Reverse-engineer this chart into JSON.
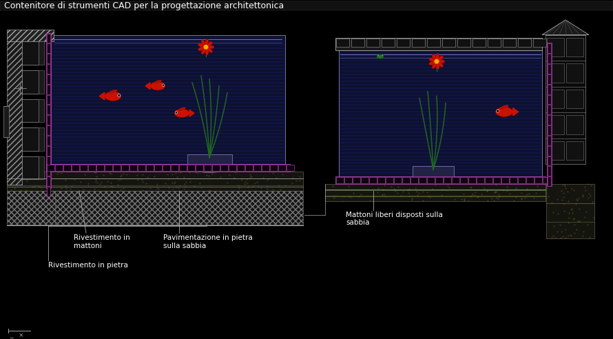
{
  "bg_color": "#000000",
  "title": "Contenitore di strumenti CAD per la progettazione architettonica",
  "title_color": "#ffffff",
  "title_fontsize": 9.0,
  "water_color": "#0a0a2e",
  "pink_color": "#cc44cc",
  "white_color": "#ffffff",
  "red_color": "#cc1100",
  "green_color": "#226622",
  "label1": "Rivestimento in\nmattoni",
  "label2": "Pavimentazione in pietra\nsulla sabbia",
  "label3": "Rivestimento in pietra",
  "label4": "Mattoni liberi disposti sulla\nsabbia",
  "label_color": "#ffffff",
  "label_fontsize": 7.5,
  "figw": 8.9,
  "figh": 4.92,
  "dpi": 100
}
